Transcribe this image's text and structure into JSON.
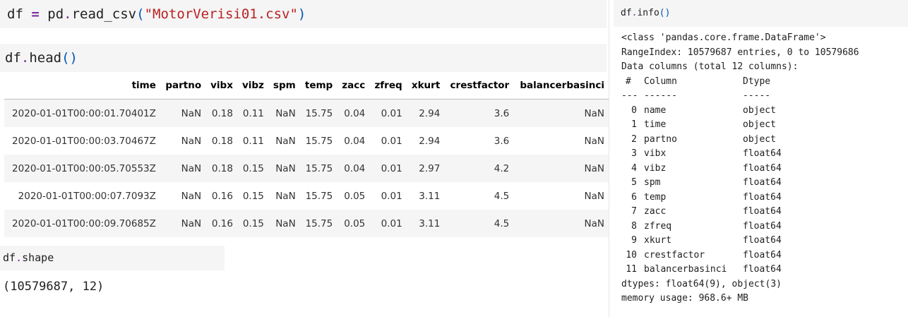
{
  "cells": {
    "read_csv": {
      "var": "df",
      "eq": "=",
      "call": "pd",
      "dot": ".",
      "func": "read_csv",
      "open": "(",
      "arg": "\"MotorVerisi01.csv\"",
      "close": ")"
    },
    "head": {
      "obj": "df",
      "dot": ".",
      "func": "head",
      "parens": "()"
    },
    "shape": {
      "obj": "df",
      "dot": ".",
      "attr": "shape"
    }
  },
  "head_table": {
    "columns": [
      "time",
      "partno",
      "vibx",
      "vibz",
      "spm",
      "temp",
      "zacc",
      "zfreq",
      "xkurt",
      "crestfactor",
      "balancerbasinci"
    ],
    "rows": [
      [
        "2020-01-01T00:00:01.70401Z",
        "NaN",
        "0.18",
        "0.11",
        "NaN",
        "15.75",
        "0.04",
        "0.01",
        "2.94",
        "3.6",
        "NaN"
      ],
      [
        "2020-01-01T00:00:03.70467Z",
        "NaN",
        "0.18",
        "0.11",
        "NaN",
        "15.75",
        "0.04",
        "0.01",
        "2.94",
        "3.6",
        "NaN"
      ],
      [
        "2020-01-01T00:00:05.70553Z",
        "NaN",
        "0.18",
        "0.15",
        "NaN",
        "15.75",
        "0.04",
        "0.01",
        "2.97",
        "4.2",
        "NaN"
      ],
      [
        "2020-01-01T00:00:07.7093Z",
        "NaN",
        "0.16",
        "0.15",
        "NaN",
        "15.75",
        "0.05",
        "0.01",
        "3.11",
        "4.5",
        "NaN"
      ],
      [
        "2020-01-01T00:00:09.70685Z",
        "NaN",
        "0.16",
        "0.15",
        "NaN",
        "15.75",
        "0.05",
        "0.01",
        "3.11",
        "4.5",
        "NaN"
      ]
    ]
  },
  "shape_output": "(10579687, 12)",
  "info": {
    "header": {
      "obj": "df",
      "dot": ".",
      "func": "info",
      "parens": "()"
    },
    "class_line": "<class 'pandas.core.frame.DataFrame'>",
    "range_line": "RangeIndex: 10579687 entries, 0 to 10579686",
    "data_line": "Data columns (total 12 columns):",
    "col_header": {
      "idx": "#",
      "name": "Column",
      "type": "Dtype"
    },
    "col_sep": {
      "idx": "---",
      "name": "------",
      "type": "-----"
    },
    "columns": [
      {
        "idx": "0",
        "name": "name",
        "type": "object"
      },
      {
        "idx": "1",
        "name": "time",
        "type": "object"
      },
      {
        "idx": "2",
        "name": "partno",
        "type": "object"
      },
      {
        "idx": "3",
        "name": "vibx",
        "type": "float64"
      },
      {
        "idx": "4",
        "name": "vibz",
        "type": "float64"
      },
      {
        "idx": "5",
        "name": "spm",
        "type": "float64"
      },
      {
        "idx": "6",
        "name": "temp",
        "type": "float64"
      },
      {
        "idx": "7",
        "name": "zacc",
        "type": "float64"
      },
      {
        "idx": "8",
        "name": "zfreq",
        "type": "float64"
      },
      {
        "idx": "9",
        "name": "xkurt",
        "type": "float64"
      },
      {
        "idx": "10",
        "name": "crestfactor",
        "type": "float64"
      },
      {
        "idx": "11",
        "name": "balancerbasinci",
        "type": "float64"
      }
    ],
    "dtypes_line": "dtypes: float64(9), object(3)",
    "memory_line": "memory usage: 968.6+ MB"
  }
}
